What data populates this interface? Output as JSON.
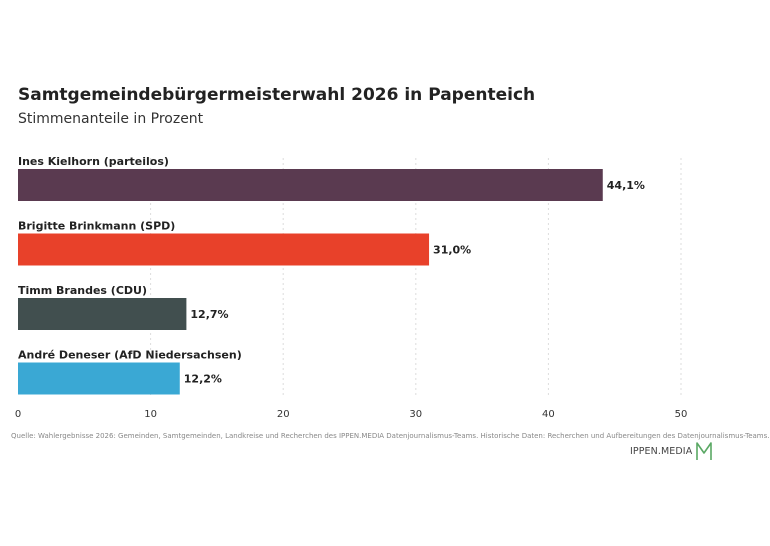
{
  "header": {
    "title": "Samtgemeindebürgermeisterwahl 2026 in Papenteich",
    "subtitle": "Stimmenanteile in Prozent"
  },
  "chart_data": {
    "type": "bar",
    "orientation": "horizontal",
    "title": "Samtgemeindebürgermeisterwahl 2026 in Papenteich",
    "subtitle": "Stimmenanteile in Prozent",
    "categories": [
      "Ines Kielhorn (parteilos)",
      "Brigitte Brinkmann (SPD)",
      "Timm Brandes (CDU)",
      "André Deneser (AfD Niedersachsen)"
    ],
    "values": [
      44.1,
      31.0,
      12.7,
      12.2
    ],
    "value_labels": [
      "44,1%",
      "31,0%",
      "12,7%",
      "12,2%"
    ],
    "colors": [
      "#5a3a50",
      "#e8412a",
      "#414f4f",
      "#3aa8d4"
    ],
    "xlim": [
      0,
      50
    ],
    "xticks": [
      0,
      10,
      20,
      30,
      40,
      50
    ],
    "grid": true,
    "xlabel": "",
    "ylabel": ""
  },
  "footer": {
    "source": "Quelle: Wahlergebnisse 2026: Gemeinden, Samtgemeinden, Landkreise und Recherchen des IPPEN.MEDIA Datenjournalismus-Teams. Historische Daten: Recherchen und Aufbereitungen des Datenjournalismus-Teams.",
    "logo_text": "IPPEN.MEDIA",
    "logo_color": "#5aa864"
  }
}
